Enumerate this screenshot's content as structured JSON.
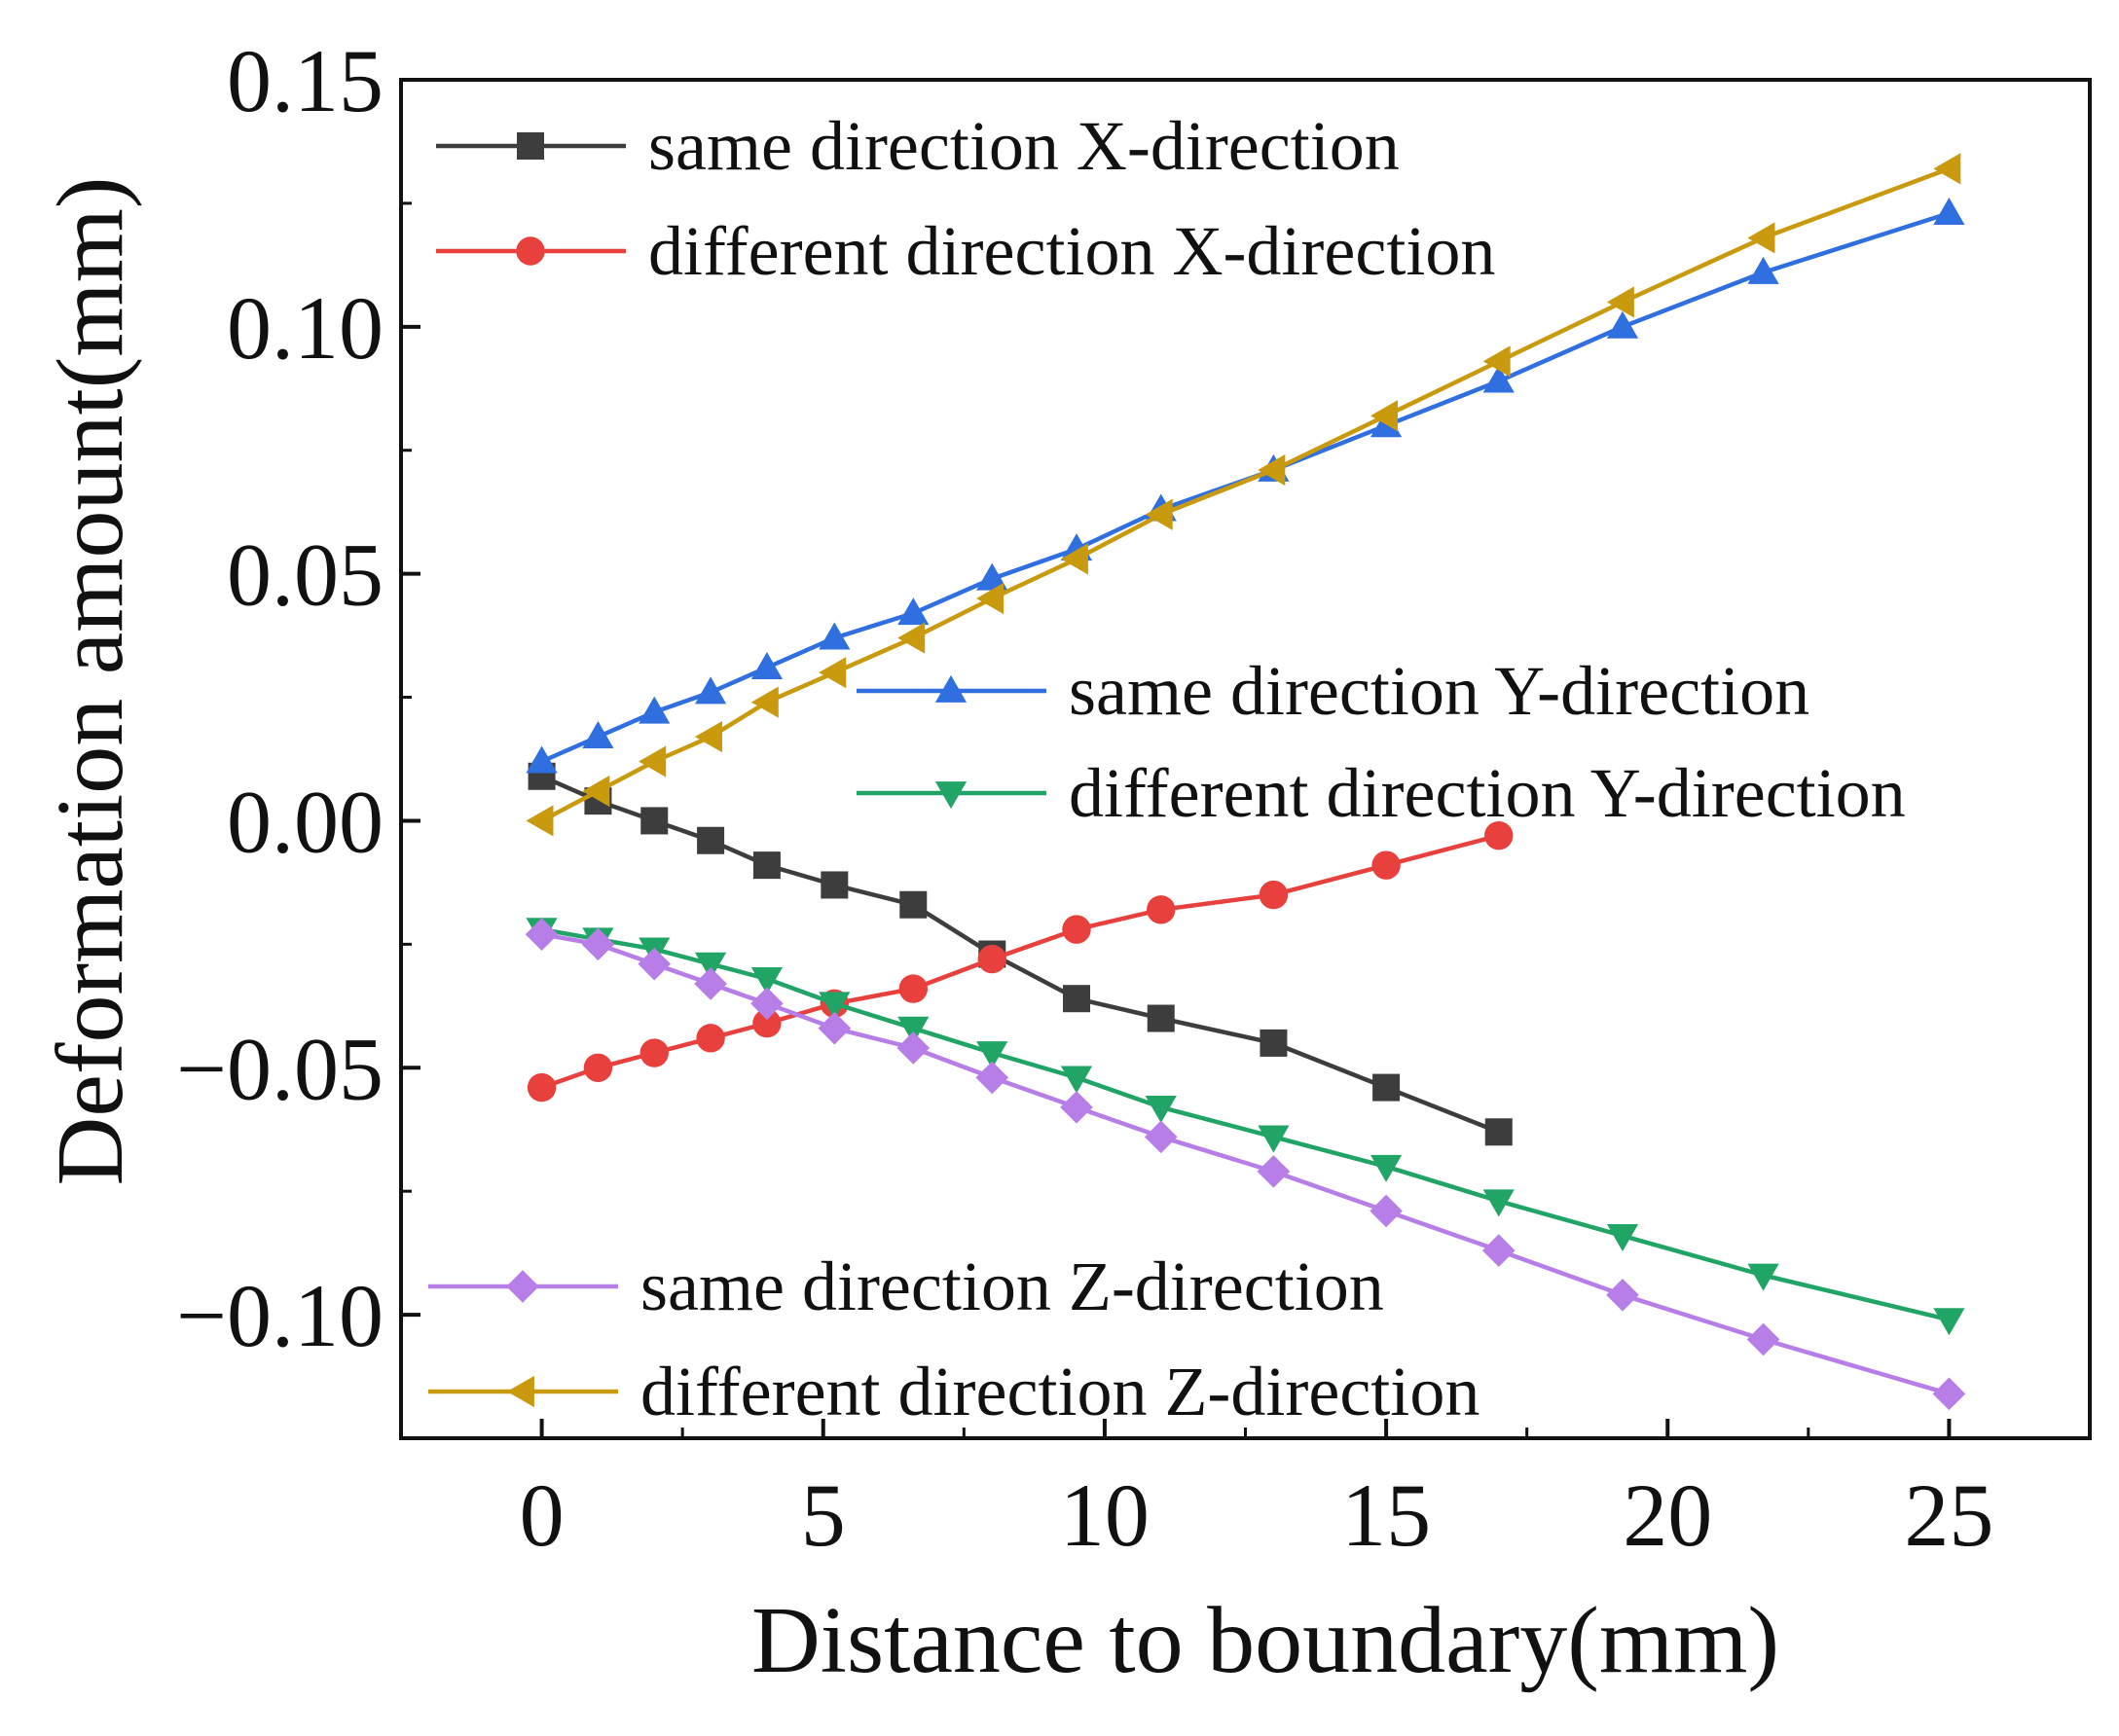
{
  "chart_data": {
    "type": "line",
    "title": "",
    "xlabel": "Distance to boundary(mm)",
    "ylabel": "Deformation amount(mm)",
    "xlim": [
      -2.5,
      27.5
    ],
    "ylim": [
      -0.125,
      0.15
    ],
    "xticks": [
      0,
      5,
      10,
      15,
      20,
      25
    ],
    "xtick_labels": [
      "0",
      "5",
      "10",
      "15",
      "20",
      "25"
    ],
    "yticks": [
      -0.1,
      -0.05,
      0.0,
      0.05,
      0.1,
      0.15
    ],
    "ytick_labels": [
      "−0.10",
      "−0.05",
      "0.00",
      "0.05",
      "0.10",
      "0.15"
    ],
    "grid": false,
    "series": [
      {
        "name": "same direction X-direction",
        "color": "#3d3d3d",
        "marker": "square",
        "x": [
          0,
          1,
          2,
          3,
          4,
          5.2,
          6.6,
          8,
          9.5,
          11,
          13,
          15,
          17
        ],
        "y": [
          0.009,
          0.004,
          0.0,
          -0.004,
          -0.009,
          -0.013,
          -0.017,
          -0.027,
          -0.036,
          -0.04,
          -0.045,
          -0.054,
          -0.063
        ]
      },
      {
        "name": "different direction X-direction",
        "color": "#e8403c",
        "marker": "circle",
        "x": [
          0,
          1,
          2,
          3,
          4,
          5.2,
          6.6,
          8,
          9.5,
          11,
          13,
          15,
          17
        ],
        "y": [
          -0.054,
          -0.05,
          -0.047,
          -0.044,
          -0.041,
          -0.037,
          -0.034,
          -0.028,
          -0.022,
          -0.018,
          -0.015,
          -0.009,
          -0.003
        ]
      },
      {
        "name": "same direction Y-direction",
        "color": "#2f6fe0",
        "marker": "triangle-up",
        "x": [
          0,
          1,
          2,
          3,
          4,
          5.2,
          6.6,
          8,
          9.5,
          11,
          13,
          15,
          17,
          19.2,
          21.7,
          25
        ],
        "y": [
          0.012,
          0.017,
          0.022,
          0.026,
          0.031,
          0.037,
          0.042,
          0.049,
          0.055,
          0.063,
          0.071,
          0.08,
          0.089,
          0.1,
          0.111,
          0.123
        ]
      },
      {
        "name": "different direction Y-direction",
        "color": "#21a566",
        "marker": "triangle-down",
        "x": [
          0,
          1,
          2,
          3,
          4,
          5.2,
          6.6,
          8,
          9.5,
          11,
          13,
          15,
          17,
          19.2,
          21.7,
          25
        ],
        "y": [
          -0.022,
          -0.024,
          -0.026,
          -0.029,
          -0.032,
          -0.037,
          -0.042,
          -0.047,
          -0.052,
          -0.058,
          -0.064,
          -0.07,
          -0.077,
          -0.084,
          -0.092,
          -0.101
        ]
      },
      {
        "name": "same direction Z-direction",
        "color": "#b77ee8",
        "marker": "diamond",
        "x": [
          0,
          1,
          2,
          3,
          4,
          5.2,
          6.6,
          8,
          9.5,
          11,
          13,
          15,
          17,
          19.2,
          21.7,
          25
        ],
        "y": [
          -0.023,
          -0.025,
          -0.029,
          -0.033,
          -0.037,
          -0.042,
          -0.046,
          -0.052,
          -0.058,
          -0.064,
          -0.071,
          -0.079,
          -0.087,
          -0.096,
          -0.105,
          -0.116
        ]
      },
      {
        "name": "different direction Z-direction",
        "color": "#c99a0e",
        "marker": "triangle-left",
        "x": [
          0,
          1,
          2,
          3,
          4,
          5.2,
          6.6,
          8,
          9.5,
          11,
          13,
          15,
          17,
          19.2,
          21.7,
          25
        ],
        "y": [
          0.0,
          0.006,
          0.012,
          0.017,
          0.024,
          0.03,
          0.037,
          0.045,
          0.053,
          0.062,
          0.071,
          0.082,
          0.093,
          0.105,
          0.118,
          0.132
        ]
      }
    ],
    "legend": [
      {
        "placement": "top-left",
        "series": [
          0,
          1
        ]
      },
      {
        "placement": "center-right",
        "series": [
          2,
          3
        ]
      },
      {
        "placement": "bottom-left",
        "series": [
          4,
          5
        ]
      }
    ]
  }
}
